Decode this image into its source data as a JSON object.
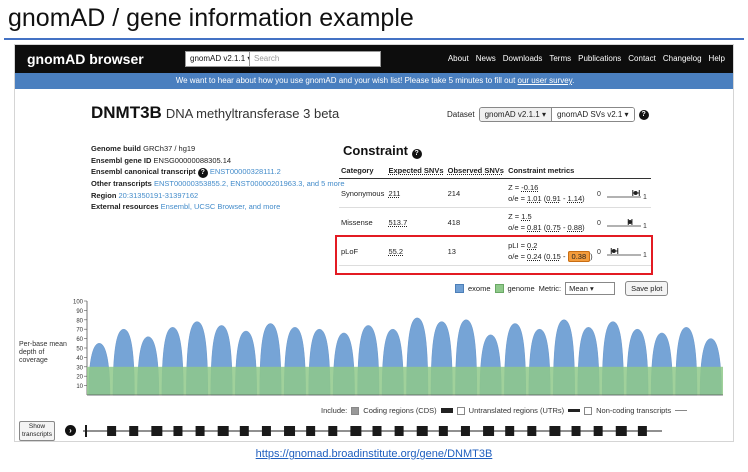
{
  "slide": {
    "title": "gnomAD / gene information example",
    "footer_link": "https://gnomad.broadinstitute.org/gene/DNMT3B"
  },
  "navbar": {
    "brand": "gnomAD browser",
    "dataset": "gnomAD v2.1.1 ▾",
    "search_placeholder": "Search",
    "links": [
      "About",
      "News",
      "Downloads",
      "Terms",
      "Publications",
      "Contact",
      "Changelog",
      "Help"
    ]
  },
  "banner": {
    "text": "We want to hear about how you use gnomAD and your wish list! Please take 5 minutes to fill out ",
    "link": "our user survey",
    "end": "."
  },
  "gene": {
    "symbol": "DNMT3B",
    "name": "DNA methyltransferase 3 beta",
    "dataset_label": "Dataset",
    "dataset_value": "gnomAD v2.1.1 ▾",
    "sv_value": "gnomAD SVs v2.1 ▾",
    "help": "?"
  },
  "info": {
    "build_label": "Genome build",
    "build_value": "GRCh37 / hg19",
    "ensembl_label": "Ensembl gene ID",
    "ensembl_value": "ENSG00000088305.14",
    "canonical_label": "Ensembl canonical transcript",
    "canonical_help": "?",
    "canonical_value": "ENST00000328111.2",
    "other_label": "Other transcripts",
    "other_value": "ENST00000353855.2, ENST00000201963.3, and 5 more",
    "region_label": "Region",
    "region_value": "20:31350191-31397162",
    "external_label": "External resources",
    "external_value": "Ensembl, UCSC Browser, and more"
  },
  "constraint": {
    "title": "Constraint",
    "help": "?",
    "headers": [
      "Category",
      "Expected SNVs",
      "Observed SNVs",
      "Constraint metrics"
    ],
    "rows": [
      {
        "category": "Synonymous",
        "expected": "211",
        "observed": "214",
        "m1_label": "Z = ",
        "m1_value": "-0.16",
        "oe_label": "o/e = ",
        "oe": "1.01",
        "ci_low": "0.91",
        "ci_high": "1.14",
        "bar_oe": 1.01,
        "bar_low": 0.91,
        "bar_high": 1.14
      },
      {
        "category": "Missense",
        "expected": "513.7",
        "observed": "418",
        "m1_label": "Z = ",
        "m1_value": "1.5",
        "oe_label": "o/e = ",
        "oe": "0.81",
        "ci_low": "0.75",
        "ci_high": "0.88",
        "bar_oe": 0.81,
        "bar_low": 0.75,
        "bar_high": 0.88
      },
      {
        "category": "pLoF",
        "expected": "55.2",
        "observed": "13",
        "m1_label": "pLI = ",
        "m1_value": "0.2",
        "oe_label": "o/e = ",
        "oe": "0.24",
        "ci_low": "0.15",
        "ci_high": "0.38",
        "bar_oe": 0.24,
        "bar_low": 0.15,
        "bar_high": 0.38
      }
    ],
    "axis_min": "0",
    "axis_max": "1"
  },
  "coverage_controls": {
    "exome": "exome",
    "genome": "genome",
    "metric_label": "Metric:",
    "metric_value": "Mean",
    "save": "Save plot",
    "exome_color": "#6f9fd4",
    "genome_color": "#8fc98a"
  },
  "coverage": {
    "ylabel": "Per-base mean depth of coverage",
    "ticks": [
      "100",
      "90",
      "80",
      "70",
      "60",
      "50",
      "40",
      "30",
      "20",
      "10"
    ],
    "exome_peaks": [
      0.55,
      0.7,
      0.62,
      0.72,
      0.78,
      0.74,
      0.68,
      0.76,
      0.72,
      0.7,
      0.66,
      0.74,
      0.7,
      0.82,
      0.78,
      0.8,
      0.64,
      0.76,
      0.7,
      0.8,
      0.72,
      0.78,
      0.7,
      0.66,
      0.72,
      0.6
    ],
    "genome_level": 0.3
  },
  "include": {
    "label": "Include:",
    "cds": "Coding regions (CDS)",
    "utr": "Untranslated regions (UTRs)",
    "noncoding": "Non-coding transcripts"
  },
  "transcripts": {
    "show_line1": "Show",
    "show_line2": "transcripts",
    "toggle_icon": "⊖"
  }
}
